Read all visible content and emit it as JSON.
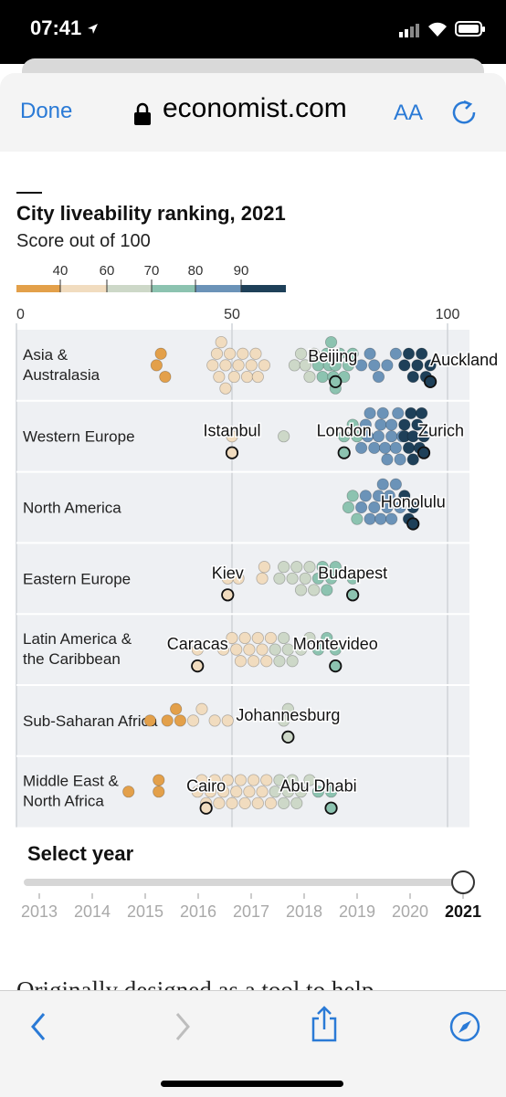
{
  "status_bar": {
    "time": "07:41"
  },
  "browser": {
    "done_label": "Done",
    "url": "economist.com",
    "aa_label": "AA"
  },
  "chart_data": {
    "type": "scatter",
    "title": "City liveability ranking, 2021",
    "subtitle": "Score out of 100",
    "legend": {
      "ticks": [
        "40",
        "60",
        "70",
        "80",
        "90"
      ],
      "colors": [
        "#e3a04a",
        "#f1dcbf",
        "#cdd8c8",
        "#8cc3b0",
        "#6b93b8",
        "#1e4059"
      ]
    },
    "x_axis": {
      "ticks": [
        "0",
        "50",
        "100"
      ],
      "range": [
        0,
        100
      ]
    },
    "regions": [
      {
        "name": "Asia & Australasia",
        "scores": [
          32.5,
          33.5,
          34.5,
          45.5,
          46.5,
          47,
          47.5,
          48.5,
          48.5,
          49.5,
          50.5,
          51.5,
          52.5,
          53.5,
          54.5,
          55.5,
          56,
          57.5,
          64.5,
          66,
          67,
          68,
          69,
          70,
          71,
          72,
          72.5,
          73,
          73.5,
          74,
          74,
          75,
          76,
          77,
          78,
          80,
          82,
          83,
          84,
          86,
          88,
          90,
          91,
          92,
          93,
          94,
          95,
          96
        ]
      },
      {
        "name": "Western Europe",
        "scores": [
          50,
          62,
          76,
          78,
          79,
          80,
          81,
          81.5,
          82,
          83,
          84,
          84.5,
          85,
          85.5,
          86,
          87,
          87,
          88,
          88.5,
          89,
          89.5,
          90,
          90,
          91,
          91.5,
          92,
          92,
          93,
          93.5,
          94,
          94.5
        ]
      },
      {
        "name": "North America",
        "scores": [
          77,
          78,
          79,
          80,
          81,
          82,
          83,
          84,
          84.5,
          85,
          86,
          86.5,
          87,
          88,
          89,
          90,
          91,
          92
        ]
      },
      {
        "name": "Eastern Europe",
        "scores": [
          49,
          51.5,
          57,
          57.5,
          61,
          62,
          64,
          65,
          66,
          67,
          68,
          69,
          70,
          71,
          72,
          73,
          74,
          78
        ]
      },
      {
        "name": "Latin America & the Caribbean",
        "scores": [
          42,
          48,
          50,
          51,
          52,
          53,
          54,
          55,
          56,
          57,
          58,
          59,
          60,
          61,
          62,
          63,
          64,
          66,
          68,
          70,
          72,
          74
        ]
      },
      {
        "name": "Sub-Saharan Africa",
        "scores": [
          31,
          35,
          37,
          38,
          41,
          43,
          46,
          49,
          62,
          63
        ]
      },
      {
        "name": "Middle East & North Africa",
        "scores": [
          26,
          33,
          33,
          42,
          43,
          44,
          45,
          46,
          47,
          48,
          49,
          50,
          51,
          52,
          53,
          54,
          55,
          56,
          57,
          58,
          59,
          60,
          61,
          62,
          63,
          64,
          65,
          66,
          68,
          70,
          73
        ]
      }
    ],
    "highlighted_cities": [
      "Beijing",
      "Auckland",
      "Istanbul",
      "London",
      "Zurich",
      "Honolulu",
      "Kiev",
      "Budapest",
      "Caracas",
      "Montevideo",
      "Johannesburg",
      "Cairo",
      "Abu Dhabi"
    ],
    "grid": true
  },
  "year_selector": {
    "label": "Select year",
    "years": [
      "2013",
      "2014",
      "2015",
      "2016",
      "2017",
      "2018",
      "2019",
      "2020",
      "2021"
    ],
    "selected": "2021"
  },
  "article": {
    "snippet": "Originally designed as a tool to help"
  }
}
